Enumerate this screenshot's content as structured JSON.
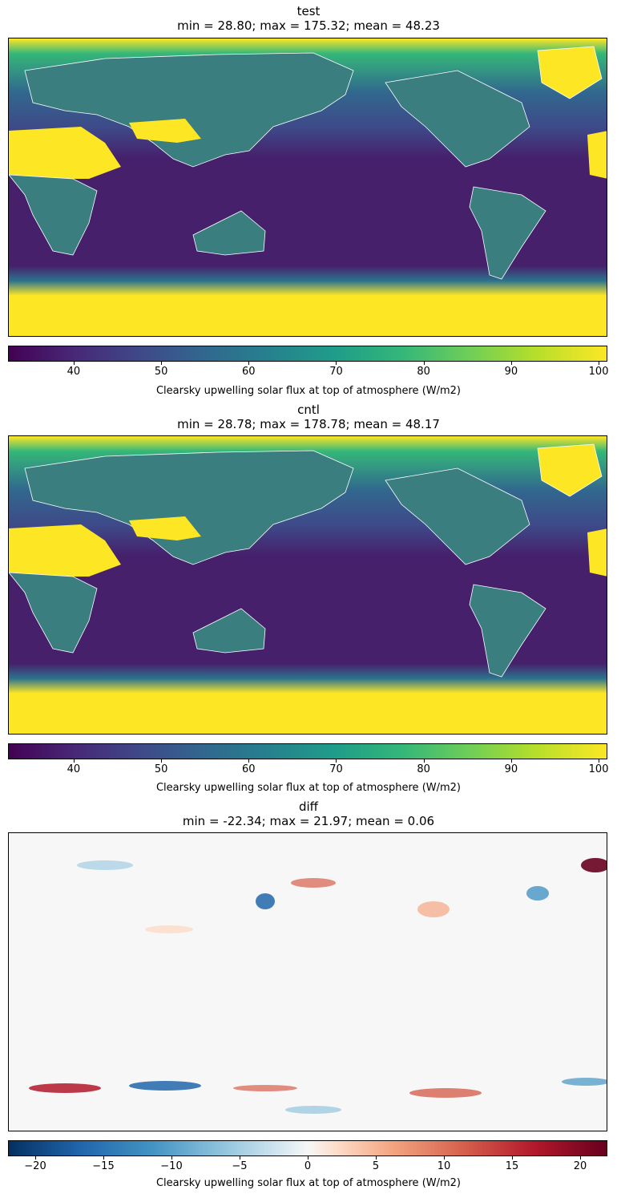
{
  "colorbar_label": "Clearsky upwelling solar flux at top of atmosphere (W/m2)",
  "panels": [
    {
      "name": "test",
      "stats": "min = 28.80; max = 175.32; mean = 48.23",
      "colormap": "viridis",
      "colorbar_range": [
        32.5,
        101
      ],
      "ticks": [
        "40",
        "50",
        "60",
        "70",
        "80",
        "90",
        "100"
      ],
      "tick_values": [
        40,
        50,
        60,
        70,
        80,
        90,
        100
      ]
    },
    {
      "name": "cntl",
      "stats": "min = 28.78; max = 178.78; mean = 48.17",
      "colormap": "viridis",
      "colorbar_range": [
        32.5,
        101
      ],
      "ticks": [
        "40",
        "50",
        "60",
        "70",
        "80",
        "90",
        "100"
      ],
      "tick_values": [
        40,
        50,
        60,
        70,
        80,
        90,
        100
      ]
    },
    {
      "name": "diff",
      "stats": "min = -22.34; max = 21.97; mean = 0.06",
      "colormap": "RdBu_r",
      "colorbar_range": [
        -22,
        22
      ],
      "ticks": [
        "−20",
        "−15",
        "−10",
        "−5",
        "0",
        "5",
        "10",
        "15",
        "20"
      ],
      "tick_values": [
        -20,
        -15,
        -10,
        -5,
        0,
        5,
        10,
        15,
        20
      ]
    }
  ],
  "colors": {
    "viridis_low": "#440154",
    "viridis_mid": "#31688e",
    "viridis_high": "#fde725",
    "land_green": "#3a7e80",
    "coast": "#ffffff",
    "diff_neutral": "#f7f7f7"
  }
}
